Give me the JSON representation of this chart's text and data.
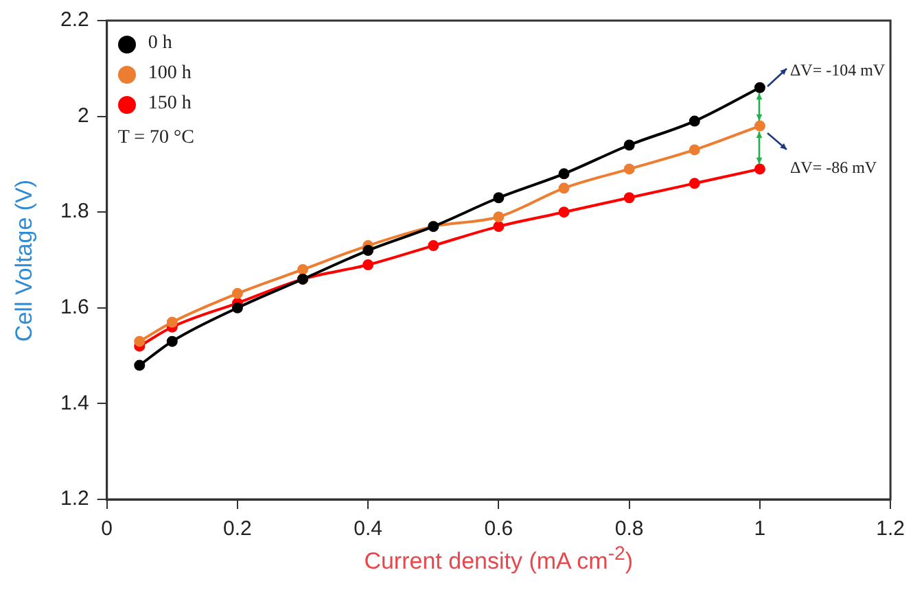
{
  "chart_data": {
    "type": "line",
    "xlabel": "Current density (mA cm$^{-2}$)",
    "ylabel": "Cell Voltage (V)",
    "x": [
      0.05,
      0.1,
      0.2,
      0.3,
      0.4,
      0.5,
      0.6,
      0.7,
      0.8,
      0.9,
      1.0
    ],
    "series": [
      {
        "name": "0 h",
        "color": "#000000",
        "values": [
          1.48,
          1.53,
          1.6,
          1.66,
          1.72,
          1.77,
          1.83,
          1.88,
          1.94,
          1.99,
          2.06
        ]
      },
      {
        "name": "100 h",
        "color": "#ed7d31",
        "values": [
          1.53,
          1.57,
          1.63,
          1.68,
          1.73,
          1.77,
          1.79,
          1.85,
          1.89,
          1.93,
          1.98
        ]
      },
      {
        "name": "150 h",
        "color": "#ff0000",
        "values": [
          1.52,
          1.56,
          1.61,
          1.66,
          1.69,
          1.73,
          1.77,
          1.8,
          1.83,
          1.86,
          1.89
        ]
      }
    ],
    "xlim": [
      0,
      1.2
    ],
    "xticks": [
      0,
      0.2,
      0.4,
      0.6,
      0.8,
      1,
      1.2
    ],
    "ylim": [
      1.2,
      2.2
    ],
    "yticks": [
      1.2,
      1.4,
      1.6,
      1.8,
      2,
      2.2
    ],
    "grid": false,
    "legend": "top left",
    "marker": "circle",
    "line_style": "solid",
    "annotations": [
      "T = 70 °C",
      {
        "text": "ΔV= -104 mV",
        "x": 1,
        "y": 2.06
      },
      {
        "text": "ΔV= -86 mV",
        "x": 1,
        "y": 1.89
      }
    ]
  }
}
